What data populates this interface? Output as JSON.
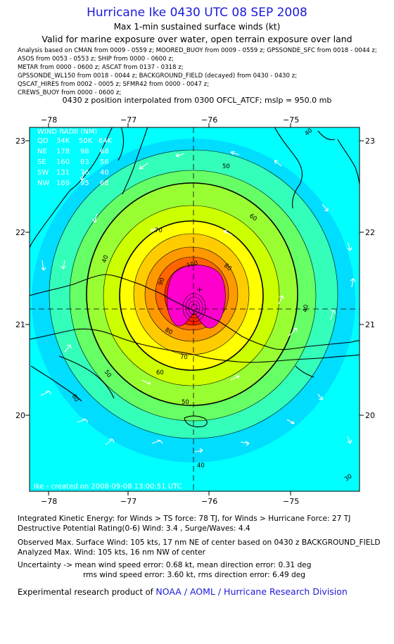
{
  "header": {
    "title": "Hurricane Ike 0430 UTC 08 SEP 2008",
    "subtitle": "Max 1-min sustained surface winds (kt)",
    "valid_text": "Valid for marine exposure over water, open terrain exposure over land",
    "source_lines": [
      "Analysis based on  CMAN from 0009 - 0559 z;  MOORED_BUOY from 0009 - 0559 z;  GPSSONDE_SFC from 0018 - 0044 z;",
      "ASOS from 0053 - 0553 z;  SHIP from 0000 - 0600 z;",
      "METAR from 0000 - 0600 z;  ASCAT from 0137 - 0318 z;",
      "GPSSONDE_WL150 from 0018 - 0044 z;  BACKGROUND_FIELD (decayed) from 0430 - 0430 z;",
      "QSCAT_HIRES from 0002 - 0005 z;  SFMR42 from 0000 - 0047 z;",
      "CREWS_BUOY from 0000 - 0600 z;"
    ],
    "position_text": "0430 z position interpolated from 0300 OFCL_ATCF; mslp = 950.0 mb"
  },
  "map": {
    "lon_ticks": [
      "−78",
      "−77",
      "−76",
      "−75"
    ],
    "lat_ticks": [
      "23",
      "22",
      "21",
      "20"
    ],
    "wind_radii": {
      "title": "WIND RADII (NM)",
      "header": [
        "QD",
        "34K",
        "50K",
        "64K"
      ],
      "rows": [
        [
          "NE",
          "178",
          "98",
          "68"
        ],
        [
          "SE",
          "160",
          "83",
          "56"
        ],
        [
          "SW",
          "131",
          "76",
          "40"
        ],
        [
          "NW",
          "169",
          "95",
          "68"
        ]
      ]
    },
    "contour_labels": [
      "40",
      "50",
      "60",
      "70",
      "80",
      "90",
      "100",
      "80",
      "60",
      "50",
      "40",
      "40",
      "40",
      "70",
      "60",
      "50",
      "30"
    ],
    "credit_stamp": "Ike  -  created on 2008-09-08 13:00:51 UTC",
    "colors": {
      "ocean": "#00ffff",
      "band_30": "#00ddff",
      "band_34": "#33ffbb",
      "band_40": "#66ff66",
      "band_50": "#99ff33",
      "band_60": "#ccff00",
      "band_64": "#ffff00",
      "band_70": "#ffcc00",
      "band_80": "#ff9900",
      "band_90": "#ff6600",
      "band_100": "#ff2200",
      "band_core": "#ff00cc"
    }
  },
  "info": {
    "ike": "Integrated Kinetic Energy:  for Winds > TS force: 78 TJ,  for Winds > Hurricane Force: 27 TJ",
    "rating": "Destructive Potential Rating(0-6)   Wind: 3.4 , Surge/Waves: 4.4",
    "observed": "Observed Max. Surface Wind: 105 kts, 17 nm NE of center based on 0430 z BACKGROUND_FIELD",
    "analyzed": "Analyzed Max. Wind: 105 kts, 16 nm NW of center",
    "uncertainty1": "Uncertainty -> mean wind speed error: 0.68 kt,   mean direction error: 0.31 deg",
    "uncertainty2": "rms wind speed error: 3.60 kt,   rms direction error: 6.49 deg"
  },
  "credit": {
    "prefix": "Experimental research product of ",
    "org": "NOAA / AOML / Hurricane Research Division"
  }
}
